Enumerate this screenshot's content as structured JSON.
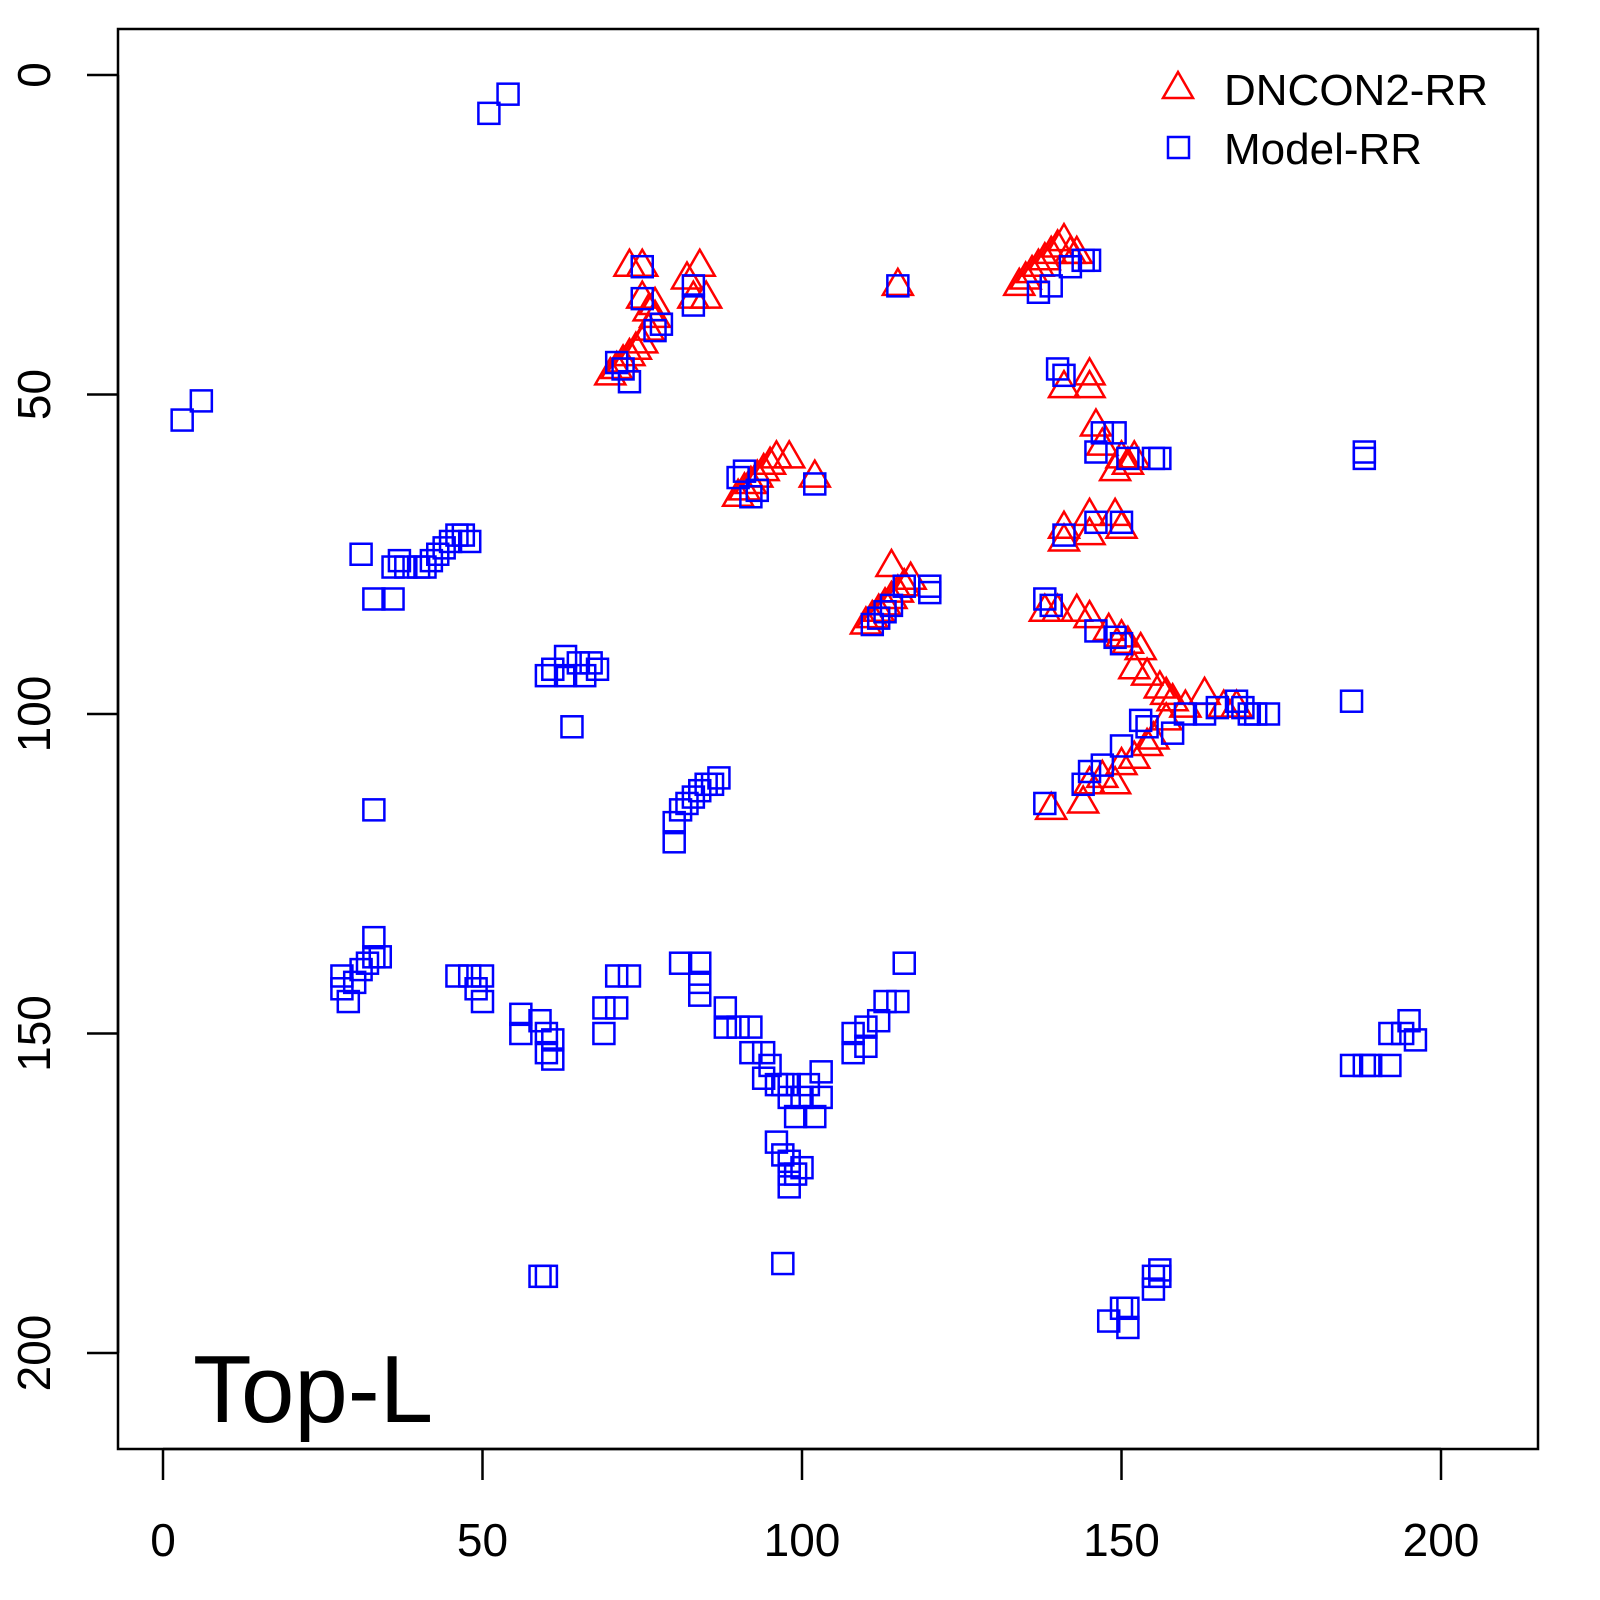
{
  "chart_data": {
    "type": "scatter",
    "title": "",
    "annotation": "Top-L",
    "xlabel": "",
    "ylabel": "",
    "xlim": [
      -7,
      215
    ],
    "ylim": [
      215,
      -7
    ],
    "y_inverted": true,
    "x_ticks": [
      "0",
      "50",
      "100",
      "150",
      "200"
    ],
    "x_tick_values": [
      0,
      50,
      100,
      150,
      200
    ],
    "y_ticks": [
      "0",
      "50",
      "100",
      "150",
      "200"
    ],
    "y_tick_values": [
      0,
      50,
      100,
      150,
      200
    ],
    "grid": false,
    "legend_position": "top-right",
    "colors": {
      "dncon2": "#ff0000",
      "model": "#0000ff",
      "axis": "#000000"
    },
    "series": [
      {
        "name": "DNCON2-RR",
        "marker": "triangle",
        "color": "#ff0000",
        "points": [
          [
            70,
            47
          ],
          [
            71,
            46
          ],
          [
            72,
            45
          ],
          [
            73,
            44
          ],
          [
            74,
            43
          ],
          [
            75,
            42
          ],
          [
            76,
            40
          ],
          [
            77,
            38
          ],
          [
            77,
            36
          ],
          [
            76,
            37
          ],
          [
            73,
            30
          ],
          [
            75,
            30
          ],
          [
            75,
            35
          ],
          [
            82,
            32
          ],
          [
            84,
            30
          ],
          [
            83,
            35
          ],
          [
            85,
            35
          ],
          [
            115,
            33
          ],
          [
            134,
            33
          ],
          [
            135,
            32
          ],
          [
            136,
            31
          ],
          [
            137,
            30
          ],
          [
            138,
            29
          ],
          [
            139,
            28
          ],
          [
            140,
            27
          ],
          [
            141,
            26
          ],
          [
            142,
            28
          ],
          [
            143,
            28
          ],
          [
            90,
            66
          ],
          [
            91,
            65
          ],
          [
            92,
            64
          ],
          [
            93,
            63
          ],
          [
            94,
            62
          ],
          [
            95,
            61
          ],
          [
            96,
            60
          ],
          [
            98,
            60
          ],
          [
            102,
            63
          ],
          [
            141,
            49
          ],
          [
            145,
            49
          ],
          [
            145,
            47
          ],
          [
            146,
            55
          ],
          [
            147,
            58
          ],
          [
            150,
            60
          ],
          [
            151,
            61
          ],
          [
            149,
            62
          ],
          [
            152,
            60
          ],
          [
            141,
            71
          ],
          [
            145,
            69
          ],
          [
            149,
            69
          ],
          [
            150,
            71
          ],
          [
            141,
            73
          ],
          [
            145,
            72
          ],
          [
            110,
            86
          ],
          [
            111,
            85
          ],
          [
            112,
            84
          ],
          [
            113,
            83
          ],
          [
            114,
            82
          ],
          [
            115,
            81
          ],
          [
            116,
            80
          ],
          [
            117,
            79
          ],
          [
            114,
            77
          ],
          [
            138,
            84
          ],
          [
            140,
            84
          ],
          [
            143,
            84
          ],
          [
            145,
            85
          ],
          [
            148,
            87
          ],
          [
            150,
            88
          ],
          [
            151,
            89
          ],
          [
            153,
            90
          ],
          [
            152,
            93
          ],
          [
            154,
            94
          ],
          [
            156,
            96
          ],
          [
            157,
            97
          ],
          [
            158,
            98
          ],
          [
            160,
            99
          ],
          [
            163,
            97
          ],
          [
            166,
            99
          ],
          [
            168,
            99
          ],
          [
            139,
            115
          ],
          [
            144,
            114
          ],
          [
            145,
            111
          ],
          [
            147,
            110
          ],
          [
            149,
            111
          ],
          [
            150,
            108
          ],
          [
            152,
            107
          ],
          [
            154,
            105
          ],
          [
            155,
            104
          ],
          [
            157,
            101
          ]
        ]
      },
      {
        "name": "Model-RR",
        "marker": "square",
        "color": "#0000ff",
        "points": [
          [
            51,
            6
          ],
          [
            54,
            3
          ],
          [
            3,
            54
          ],
          [
            6,
            51
          ],
          [
            31,
            75
          ],
          [
            33,
            82
          ],
          [
            36,
            82
          ],
          [
            36,
            77
          ],
          [
            37,
            76
          ],
          [
            38,
            77
          ],
          [
            40,
            77
          ],
          [
            41,
            77
          ],
          [
            42,
            76
          ],
          [
            43,
            75
          ],
          [
            44,
            74
          ],
          [
            45,
            73
          ],
          [
            46,
            72
          ],
          [
            47,
            72
          ],
          [
            48,
            73
          ],
          [
            60,
            94
          ],
          [
            61,
            93
          ],
          [
            63,
            91
          ],
          [
            63,
            94
          ],
          [
            65,
            92
          ],
          [
            66,
            94
          ],
          [
            67,
            92
          ],
          [
            68,
            93
          ],
          [
            64,
            102
          ],
          [
            33,
            115
          ],
          [
            80,
            117
          ],
          [
            80,
            120
          ],
          [
            81,
            115
          ],
          [
            82,
            114
          ],
          [
            83,
            113
          ],
          [
            84,
            112
          ],
          [
            85,
            111
          ],
          [
            86,
            111
          ],
          [
            87,
            110
          ],
          [
            28,
            141
          ],
          [
            28,
            143
          ],
          [
            29,
            145
          ],
          [
            30,
            142
          ],
          [
            31,
            140
          ],
          [
            32,
            139
          ],
          [
            33,
            138
          ],
          [
            33,
            135
          ],
          [
            34,
            138
          ],
          [
            46,
            141
          ],
          [
            48,
            141
          ],
          [
            49,
            143
          ],
          [
            50,
            141
          ],
          [
            50,
            145
          ],
          [
            56,
            147
          ],
          [
            56,
            150
          ],
          [
            59,
            148
          ],
          [
            60,
            150
          ],
          [
            60,
            153
          ],
          [
            61,
            154
          ],
          [
            61,
            151
          ],
          [
            69,
            146
          ],
          [
            69,
            150
          ],
          [
            71,
            146
          ],
          [
            71,
            141
          ],
          [
            73,
            141
          ],
          [
            81,
            139
          ],
          [
            84,
            139
          ],
          [
            84,
            142
          ],
          [
            84,
            144
          ],
          [
            88,
            146
          ],
          [
            88,
            149
          ],
          [
            90,
            149
          ],
          [
            92,
            149
          ],
          [
            92,
            153
          ],
          [
            94,
            153
          ],
          [
            95,
            155
          ],
          [
            94,
            157
          ],
          [
            96,
            158
          ],
          [
            97,
            158
          ],
          [
            98,
            158
          ],
          [
            98,
            160
          ],
          [
            100,
            160
          ],
          [
            101,
            158
          ],
          [
            102,
            163
          ],
          [
            103,
            160
          ],
          [
            103,
            156
          ],
          [
            99,
            163
          ],
          [
            96,
            167
          ],
          [
            97,
            169
          ],
          [
            98,
            170
          ],
          [
            98,
            172
          ],
          [
            99,
            172
          ],
          [
            100,
            171
          ],
          [
            98,
            174
          ],
          [
            108,
            150
          ],
          [
            108,
            153
          ],
          [
            110,
            152
          ],
          [
            110,
            149
          ],
          [
            112,
            148
          ],
          [
            113,
            145
          ],
          [
            115,
            145
          ],
          [
            116,
            139
          ],
          [
            97,
            186
          ],
          [
            59,
            188
          ],
          [
            60,
            188
          ],
          [
            148,
            195
          ],
          [
            150,
            193
          ],
          [
            151,
            196
          ],
          [
            151,
            193
          ],
          [
            155,
            190
          ],
          [
            155,
            188
          ],
          [
            156,
            188
          ],
          [
            156,
            187
          ],
          [
            186,
            155
          ],
          [
            188,
            155
          ],
          [
            189,
            155
          ],
          [
            192,
            155
          ],
          [
            192,
            150
          ],
          [
            194,
            150
          ],
          [
            195,
            148
          ],
          [
            196,
            151
          ],
          [
            188,
            59
          ],
          [
            188,
            60
          ],
          [
            186,
            98
          ],
          [
            140,
            46
          ],
          [
            141,
            47
          ],
          [
            146,
            59
          ],
          [
            147,
            56
          ],
          [
            149,
            56
          ],
          [
            151,
            60
          ],
          [
            156,
            60
          ],
          [
            155,
            60
          ],
          [
            141,
            72
          ],
          [
            146,
            70
          ],
          [
            150,
            70
          ],
          [
            138,
            82
          ],
          [
            139,
            83
          ],
          [
            146,
            87
          ],
          [
            149,
            88
          ],
          [
            150,
            89
          ],
          [
            158,
            103
          ],
          [
            160,
            100
          ],
          [
            163,
            100
          ],
          [
            165,
            99
          ],
          [
            168,
            98
          ],
          [
            170,
            100
          ],
          [
            171,
            100
          ],
          [
            173,
            100
          ],
          [
            169,
            99
          ],
          [
            154,
            102
          ],
          [
            144,
            111
          ],
          [
            145,
            109
          ],
          [
            147,
            108
          ],
          [
            138,
            114
          ],
          [
            150,
            105
          ],
          [
            153,
            101
          ],
          [
            120,
            80
          ],
          [
            120,
            81
          ],
          [
            115,
            33
          ],
          [
            102,
            64
          ],
          [
            90,
            63
          ],
          [
            91,
            62
          ],
          [
            92,
            66
          ],
          [
            93,
            65
          ],
          [
            75,
            30
          ],
          [
            75,
            35
          ],
          [
            83,
            33
          ],
          [
            83,
            36
          ],
          [
            77,
            40
          ],
          [
            78,
            39
          ],
          [
            73,
            48
          ],
          [
            71,
            45
          ],
          [
            72,
            46
          ],
          [
            137,
            34
          ],
          [
            139,
            33
          ],
          [
            142,
            30
          ],
          [
            145,
            29
          ],
          [
            144,
            29
          ],
          [
            111,
            86
          ],
          [
            112,
            85
          ],
          [
            113,
            84
          ],
          [
            114,
            83
          ],
          [
            116,
            80
          ]
        ]
      }
    ]
  }
}
